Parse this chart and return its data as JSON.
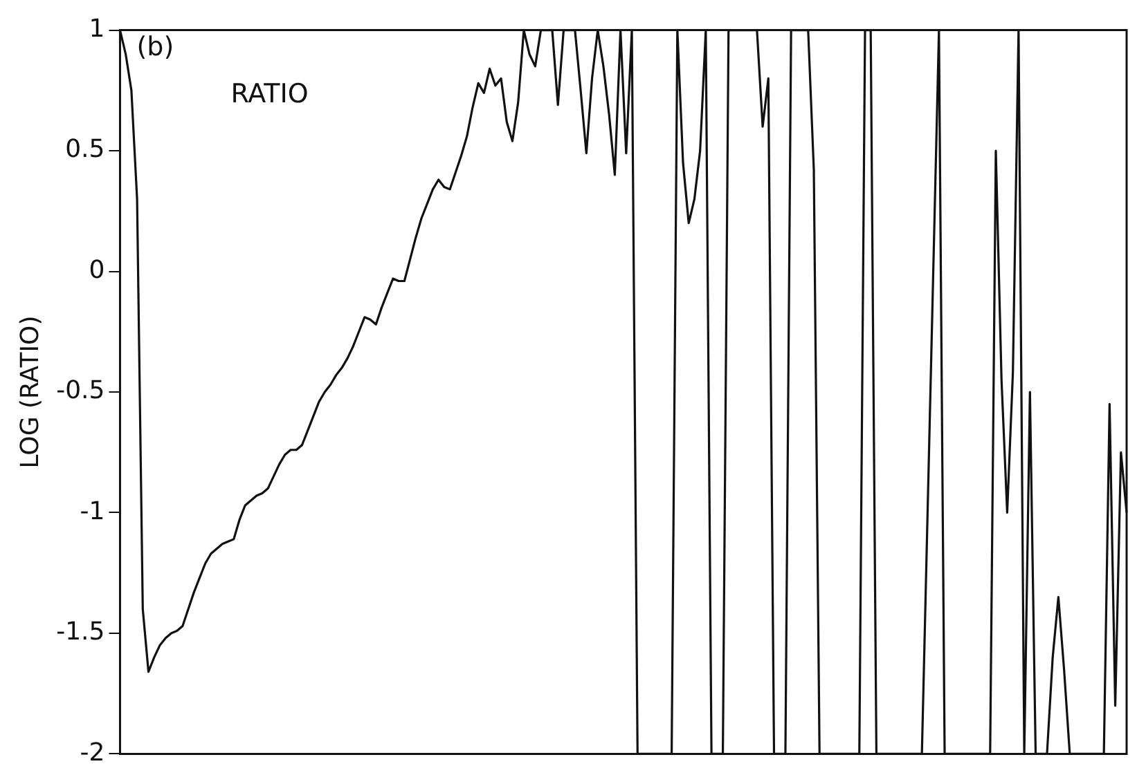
{
  "chart_data": {
    "type": "line",
    "ylabel": "LOG (RATIO)",
    "annotations": [
      "(b)"
    ],
    "ylim": [
      -2,
      1
    ],
    "yticks": [
      -2,
      -1.5,
      -1,
      -0.5,
      0,
      0.5,
      1
    ],
    "grid": false,
    "legend": false,
    "marker": "none",
    "line_style": "solid",
    "tick_labels": "y",
    "categories": [
      null,
      null,
      null,
      null,
      null,
      null,
      null,
      null,
      null,
      null,
      null,
      null,
      null,
      null,
      null,
      null,
      null,
      null,
      null,
      null,
      null,
      null,
      null,
      null,
      null,
      null,
      null,
      null,
      null,
      null,
      null,
      null,
      null,
      null,
      null,
      null,
      null,
      null,
      null,
      null,
      null,
      null,
      null,
      null,
      null,
      null,
      null,
      null,
      null,
      null,
      null,
      null,
      null,
      null,
      null,
      null,
      null,
      null,
      null,
      null,
      null,
      null,
      null,
      null,
      null,
      null,
      null,
      null,
      null,
      null,
      null,
      null,
      null,
      null,
      null,
      null,
      null,
      null,
      null,
      null,
      null,
      null,
      null,
      null,
      null,
      null,
      null,
      null,
      null,
      null,
      null,
      null,
      null,
      null,
      null,
      null,
      null,
      null,
      null,
      null,
      null,
      null,
      null,
      null,
      null,
      null,
      null,
      null,
      null,
      null,
      null,
      null,
      null,
      null,
      null,
      null,
      null,
      null,
      null,
      null,
      null,
      null,
      null,
      null,
      null,
      null,
      null,
      null,
      null,
      null,
      null,
      null,
      null,
      null,
      null,
      null,
      null,
      null,
      null,
      null,
      null,
      null,
      null,
      null,
      null,
      null,
      null,
      null,
      null,
      null,
      null,
      null,
      null,
      null,
      null,
      null,
      null,
      null,
      null,
      null,
      null,
      null,
      null,
      null,
      null,
      null,
      null,
      null,
      null,
      null,
      null,
      null,
      null,
      null,
      null,
      null,
      null,
      null
    ],
    "series": [
      {
        "name": "RATIO",
        "color": "#111111",
        "values": [
          1,
          0.9,
          0.75,
          0.3,
          -1.4,
          -1.66,
          -1.6,
          -1.55,
          -1.52,
          -1.5,
          -1.49,
          -1.47,
          -1.4,
          -1.33,
          -1.27,
          -1.21,
          -1.17,
          -1.15,
          -1.13,
          -1.12,
          -1.11,
          -1.03,
          -0.97,
          -0.95,
          -0.93,
          -0.92,
          -0.9,
          -0.85,
          -0.8,
          -0.76,
          -0.74,
          -0.74,
          -0.72,
          -0.66,
          -0.6,
          -0.54,
          -0.5,
          -0.47,
          -0.43,
          -0.4,
          -0.36,
          -0.31,
          -0.25,
          -0.19,
          -0.2,
          -0.22,
          -0.15,
          -0.09,
          -0.03,
          -0.04,
          -0.04,
          0.05,
          0.14,
          0.22,
          0.28,
          0.34,
          0.38,
          0.35,
          0.34,
          0.41,
          0.48,
          0.56,
          0.68,
          0.78,
          0.74,
          0.84,
          0.77,
          0.8,
          0.62,
          0.54,
          0.7,
          1,
          0.9,
          0.85,
          1,
          1,
          1,
          0.69,
          1,
          1,
          1,
          0.75,
          0.49,
          0.8,
          1,
          0.85,
          0.65,
          0.4,
          1,
          0.49,
          1,
          -2,
          -2,
          -2,
          -2,
          -2,
          -2,
          -2,
          1,
          0.45,
          0.2,
          0.3,
          0.5,
          1,
          -2,
          -2,
          -2,
          1,
          1,
          1,
          1,
          1,
          1,
          0.6,
          0.8,
          -2,
          -2,
          -2,
          1,
          1,
          1,
          1,
          0.42,
          -2,
          -2,
          -2,
          -2,
          -2,
          -2,
          -2,
          -2,
          1,
          1,
          -2,
          -2,
          -2,
          -2,
          -2,
          -2,
          -2,
          -2,
          -2,
          -1,
          0,
          1,
          -2,
          -2,
          -2,
          -2,
          -2,
          -2,
          -2,
          -2,
          -2,
          0.5,
          -0.45,
          -1,
          -0.42,
          1,
          -2,
          -0.5,
          -2,
          -2,
          -2,
          -1.6,
          -1.35,
          -1.65,
          -2,
          -2,
          -2,
          -2,
          -2,
          -2,
          -2,
          -0.55,
          -1.8,
          -0.75,
          -1
        ]
      }
    ]
  }
}
